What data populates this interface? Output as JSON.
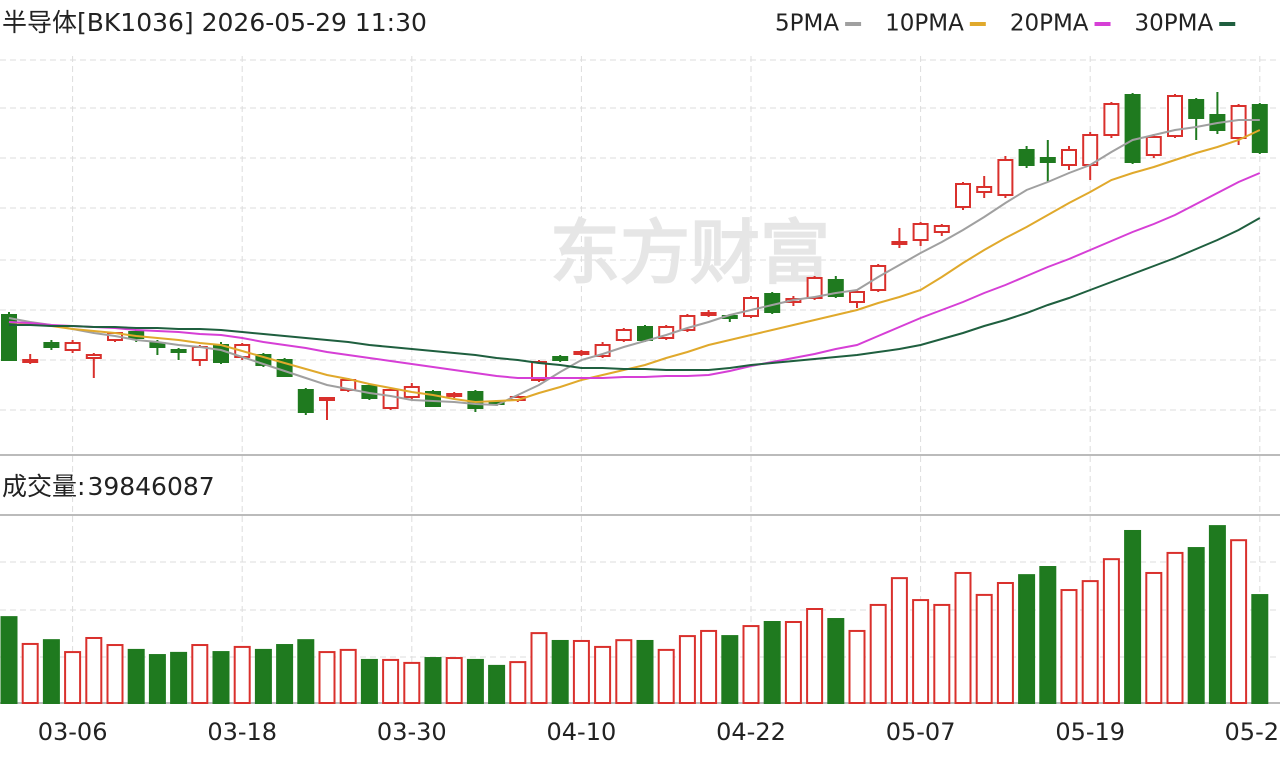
{
  "chart_data": {
    "type": "candlestick",
    "title": "半导体[BK1036] 2026-05-29 11:30",
    "watermark": "东方财富",
    "categories": [
      null,
      null,
      null,
      "03-06",
      null,
      null,
      null,
      null,
      null,
      null,
      null,
      "03-18",
      null,
      null,
      null,
      null,
      null,
      null,
      null,
      "03-30",
      null,
      null,
      null,
      null,
      null,
      null,
      null,
      "04-10",
      null,
      null,
      null,
      null,
      null,
      null,
      null,
      "04-22",
      null,
      null,
      null,
      null,
      null,
      null,
      null,
      "05-07",
      null,
      null,
      null,
      null,
      null,
      null,
      null,
      "05-19",
      null,
      null,
      null,
      null,
      null,
      null,
      null,
      "05-2"
    ],
    "open": [
      135,
      88,
      107,
      100,
      92,
      110,
      118,
      107,
      100,
      90,
      105,
      93,
      95,
      90,
      60,
      50,
      60,
      64,
      42,
      53,
      58,
      54,
      58,
      48,
      50,
      70,
      93,
      96,
      94,
      110,
      123,
      112,
      120,
      135,
      134,
      134,
      156,
      148,
      152,
      170,
      148,
      160,
      206,
      210,
      218,
      243,
      258,
      255,
      300,
      292,
      285,
      285,
      315,
      355,
      295,
      314,
      350,
      335,
      312,
      345
    ],
    "high": [
      138,
      96,
      110,
      110,
      97,
      118,
      120,
      110,
      102,
      105,
      108,
      107,
      97,
      92,
      62,
      53,
      72,
      66,
      62,
      67,
      60,
      58,
      60,
      50,
      55,
      90,
      95,
      100,
      108,
      122,
      125,
      125,
      136,
      140,
      136,
      154,
      158,
      154,
      174,
      174,
      160,
      186,
      222,
      228,
      226,
      268,
      274,
      294,
      304,
      310,
      304,
      318,
      348,
      357,
      316,
      356,
      352,
      358,
      346,
      347
    ],
    "low": [
      90,
      86,
      100,
      97,
      72,
      108,
      108,
      95,
      90,
      84,
      86,
      90,
      83,
      73,
      35,
      30,
      58,
      50,
      40,
      50,
      43,
      52,
      38,
      44,
      48,
      68,
      88,
      94,
      92,
      108,
      108,
      110,
      118,
      133,
      128,
      132,
      136,
      144,
      150,
      152,
      142,
      158,
      202,
      204,
      214,
      240,
      252,
      252,
      282,
      268,
      280,
      270,
      312,
      286,
      292,
      312,
      310,
      316,
      305,
      296
    ],
    "close": [
      90,
      90,
      103,
      107,
      95,
      117,
      112,
      103,
      98,
      103,
      88,
      105,
      85,
      74,
      38,
      52,
      70,
      52,
      60,
      63,
      44,
      56,
      42,
      46,
      53,
      88,
      90,
      98,
      105,
      120,
      110,
      123,
      134,
      137,
      132,
      152,
      138,
      151,
      172,
      154,
      158,
      184,
      208,
      226,
      224,
      266,
      263,
      290,
      285,
      288,
      300,
      315,
      346,
      288,
      313,
      354,
      332,
      320,
      344,
      298
    ],
    "ylim": [
      0,
      400
    ],
    "up_color": "#d9302c",
    "down_color": "#1f7a1f",
    "series": [
      {
        "name": "5PMA",
        "color": "#a0a0a0",
        "values": [
          132,
          128,
          125,
          121,
          117,
          114,
          110,
          108,
          105,
          103,
          100,
          93,
          86,
          79,
          72,
          65,
          61,
          57,
          54,
          50,
          49,
          48,
          46,
          45,
          55,
          65,
          78,
          90,
          96,
          103,
          109,
          115,
          122,
          128,
          135,
          140,
          145,
          150,
          153,
          157,
          160,
          173,
          185,
          197,
          208,
          220,
          233,
          247,
          260,
          268,
          277,
          285,
          298,
          310,
          315,
          320,
          323,
          327,
          330,
          330
        ]
      },
      {
        "name": "10PMA",
        "color": "#e0a92c",
        "values": [
          128,
          126,
          124,
          121,
          119,
          117,
          114,
          112,
          110,
          107,
          105,
          99,
          93,
          87,
          81,
          75,
          71,
          66,
          62,
          58,
          55,
          51,
          48,
          49,
          50,
          57,
          63,
          70,
          75,
          80,
          85,
          92,
          98,
          105,
          110,
          115,
          120,
          125,
          130,
          135,
          140,
          147,
          153,
          160,
          173,
          187,
          200,
          212,
          223,
          235,
          247,
          258,
          270,
          277,
          283,
          290,
          297,
          303,
          310,
          320
        ]
      },
      {
        "name": "20PMA",
        "color": "#d63fd6",
        "values": [
          128,
          127,
          125,
          124,
          123,
          122,
          120,
          119,
          118,
          116,
          115,
          112,
          108,
          105,
          102,
          98,
          95,
          92,
          89,
          86,
          83,
          80,
          77,
          74,
          72,
          72,
          72,
          72,
          72,
          73,
          73,
          74,
          74,
          75,
          79,
          84,
          88,
          92,
          96,
          101,
          105,
          114,
          123,
          132,
          140,
          148,
          157,
          165,
          174,
          183,
          191,
          200,
          209,
          218,
          226,
          235,
          246,
          257,
          268,
          277
        ]
      },
      {
        "name": "30PMA",
        "color": "#1f5f3f",
        "values": [
          125,
          125,
          124,
          124,
          123,
          123,
          122,
          122,
          121,
          121,
          120,
          118,
          116,
          114,
          112,
          110,
          108,
          105,
          103,
          101,
          99,
          97,
          95,
          92,
          90,
          87,
          85,
          82,
          82,
          81,
          81,
          80,
          80,
          80,
          82,
          85,
          87,
          89,
          91,
          93,
          95,
          98,
          101,
          105,
          111,
          117,
          124,
          130,
          137,
          145,
          152,
          160,
          168,
          176,
          184,
          192,
          201,
          210,
          220,
          232
        ]
      }
    ],
    "volume": {
      "label": "成交量:",
      "ylim": [
        0,
        69400000
      ],
      "values": [
        31700000,
        21800000,
        23200000,
        18800000,
        24000000,
        21400000,
        19600000,
        17700000,
        18500000,
        21400000,
        18800000,
        20700000,
        19600000,
        21400000,
        23200000,
        18800000,
        19600000,
        15900000,
        15900000,
        14800000,
        16600000,
        16600000,
        15900000,
        13700000,
        15100000,
        25800000,
        22900000,
        22900000,
        20700000,
        23200000,
        22900000,
        19600000,
        24700000,
        26600000,
        24700000,
        28400000,
        29900000,
        29900000,
        34700000,
        31000000,
        26600000,
        36200000,
        46100000,
        38000000,
        36200000,
        48000000,
        39900000,
        44300000,
        47200000,
        50200000,
        41700000,
        45000000,
        53100000,
        63500000,
        48000000,
        55400000,
        57200000,
        65300000,
        60100000,
        39846087
      ]
    }
  }
}
